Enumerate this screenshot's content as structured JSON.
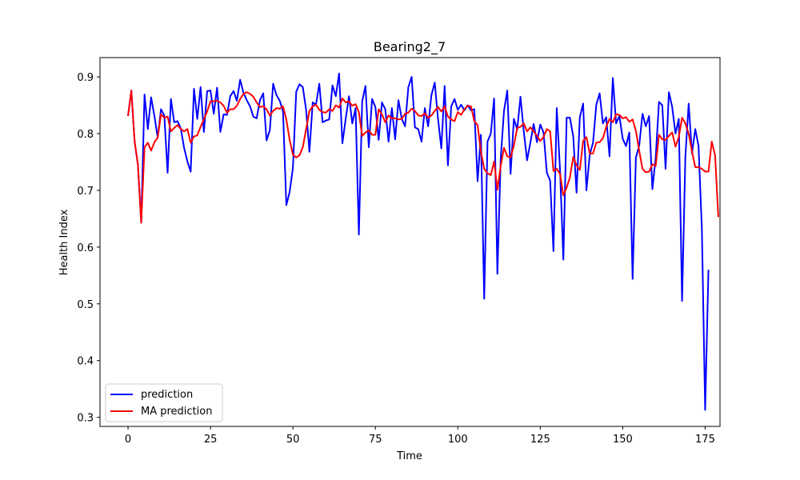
{
  "chart_data": {
    "type": "line",
    "title": "Bearing2_7",
    "xlabel": "Time",
    "ylabel": "Health Index",
    "xlim": [
      -8.5,
      179.5
    ],
    "ylim": [
      0.284,
      0.934
    ],
    "xticks": [
      0,
      25,
      50,
      75,
      100,
      125,
      150,
      175
    ],
    "yticks": [
      0.3,
      0.4,
      0.5,
      0.6,
      0.7,
      0.8,
      0.9
    ],
    "grid": false,
    "legend_position": "lower-left",
    "series": [
      {
        "name": "prediction",
        "color": "#0000ff",
        "x_start": 0,
        "values": [
          0.831,
          0.876,
          0.786,
          0.745,
          0.643,
          0.869,
          0.808,
          0.864,
          0.831,
          0.793,
          0.843,
          0.832,
          0.731,
          0.861,
          0.82,
          0.822,
          0.809,
          0.775,
          0.751,
          0.733,
          0.879,
          0.826,
          0.882,
          0.803,
          0.875,
          0.876,
          0.835,
          0.881,
          0.803,
          0.834,
          0.833,
          0.866,
          0.875,
          0.858,
          0.895,
          0.872,
          0.859,
          0.848,
          0.83,
          0.827,
          0.859,
          0.871,
          0.788,
          0.806,
          0.888,
          0.868,
          0.858,
          0.839,
          0.674,
          0.697,
          0.74,
          0.874,
          0.887,
          0.882,
          0.842,
          0.768,
          0.855,
          0.851,
          0.888,
          0.82,
          0.823,
          0.825,
          0.885,
          0.866,
          0.906,
          0.783,
          0.826,
          0.866,
          0.818,
          0.845,
          0.622,
          0.857,
          0.884,
          0.776,
          0.861,
          0.847,
          0.789,
          0.855,
          0.843,
          0.786,
          0.845,
          0.79,
          0.859,
          0.826,
          0.813,
          0.882,
          0.9,
          0.811,
          0.808,
          0.786,
          0.845,
          0.813,
          0.868,
          0.89,
          0.826,
          0.774,
          0.884,
          0.744,
          0.848,
          0.861,
          0.842,
          0.851,
          0.841,
          0.85,
          0.841,
          0.843,
          0.716,
          0.798,
          0.509,
          0.786,
          0.8,
          0.862,
          0.553,
          0.755,
          0.84,
          0.876,
          0.729,
          0.826,
          0.807,
          0.865,
          0.804,
          0.753,
          0.784,
          0.817,
          0.785,
          0.816,
          0.802,
          0.731,
          0.717,
          0.593,
          0.845,
          0.735,
          0.578,
          0.828,
          0.828,
          0.795,
          0.696,
          0.829,
          0.853,
          0.7,
          0.763,
          0.784,
          0.851,
          0.871,
          0.818,
          0.829,
          0.76,
          0.898,
          0.818,
          0.831,
          0.791,
          0.778,
          0.802,
          0.544,
          0.758,
          0.779,
          0.835,
          0.813,
          0.831,
          0.702,
          0.758,
          0.856,
          0.85,
          0.738,
          0.873,
          0.847,
          0.8,
          0.826,
          0.505,
          0.76,
          0.853,
          0.765,
          0.808,
          0.778,
          0.633,
          0.313,
          0.56
        ]
      },
      {
        "name": "MA prediction",
        "color": "#ff0000",
        "x_start": 0,
        "values": [
          0.831,
          0.876,
          0.786,
          0.745,
          0.643,
          0.776,
          0.784,
          0.77,
          0.785,
          0.793,
          0.834,
          0.828,
          0.83,
          0.804,
          0.81,
          0.815,
          0.808,
          0.804,
          0.808,
          0.784,
          0.795,
          0.797,
          0.812,
          0.825,
          0.839,
          0.857,
          0.857,
          0.858,
          0.855,
          0.849,
          0.837,
          0.843,
          0.843,
          0.849,
          0.861,
          0.87,
          0.873,
          0.87,
          0.865,
          0.855,
          0.847,
          0.848,
          0.843,
          0.832,
          0.84,
          0.845,
          0.844,
          0.848,
          0.825,
          0.789,
          0.763,
          0.758,
          0.762,
          0.776,
          0.808,
          0.84,
          0.848,
          0.851,
          0.842,
          0.838,
          0.837,
          0.843,
          0.84,
          0.85,
          0.846,
          0.862,
          0.855,
          0.857,
          0.849,
          0.852,
          0.838,
          0.796,
          0.802,
          0.806,
          0.798,
          0.798,
          0.843,
          0.834,
          0.82,
          0.832,
          0.827,
          0.827,
          0.825,
          0.826,
          0.835,
          0.837,
          0.844,
          0.84,
          0.832,
          0.831,
          0.836,
          0.828,
          0.832,
          0.84,
          0.847,
          0.839,
          0.848,
          0.83,
          0.825,
          0.822,
          0.838,
          0.833,
          0.843,
          0.849,
          0.848,
          0.822,
          0.815,
          0.768,
          0.738,
          0.73,
          0.727,
          0.751,
          0.701,
          0.743,
          0.775,
          0.76,
          0.758,
          0.779,
          0.81,
          0.812,
          0.818,
          0.804,
          0.811,
          0.804,
          0.796,
          0.787,
          0.794,
          0.808,
          0.804,
          0.734,
          0.738,
          0.729,
          0.691,
          0.705,
          0.723,
          0.759,
          0.744,
          0.736,
          0.787,
          0.794,
          0.765,
          0.765,
          0.784,
          0.785,
          0.792,
          0.812,
          0.826,
          0.82,
          0.834,
          0.833,
          0.827,
          0.829,
          0.821,
          0.825,
          0.805,
          0.77,
          0.738,
          0.732,
          0.733,
          0.746,
          0.743,
          0.798,
          0.79,
          0.789,
          0.796,
          0.802,
          0.777,
          0.794,
          0.828,
          0.818,
          0.8,
          0.769,
          0.741,
          0.741,
          0.738,
          0.733,
          0.733,
          0.786,
          0.762,
          0.653
        ]
      }
    ]
  }
}
